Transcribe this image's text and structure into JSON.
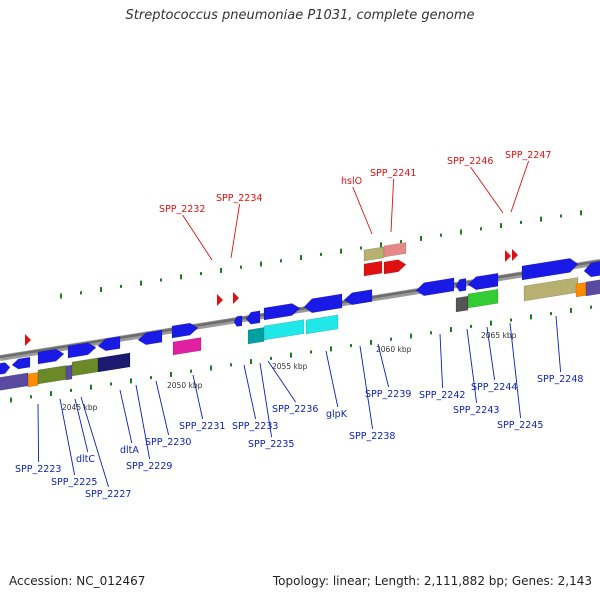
{
  "title": "Streptococcus pneumoniae P1031, complete genome",
  "accession": "Accession: NC_012467",
  "summary": "Topology: linear; Length: 2,111,882 bp; Genes: 2,143",
  "ticks": [
    {
      "label": "2045 kbp"
    },
    {
      "label": "2050 kbp"
    },
    {
      "label": "2055 kbp"
    },
    {
      "label": "2060 kbp"
    },
    {
      "label": "2065 kbp"
    }
  ],
  "labels_red": [
    {
      "id": "SPP_2232",
      "text": "SPP_2232"
    },
    {
      "id": "SPP_2234",
      "text": "SPP_2234"
    },
    {
      "id": "hslO",
      "text": "hslO"
    },
    {
      "id": "SPP_2241",
      "text": "SPP_2241"
    },
    {
      "id": "SPP_2246",
      "text": "SPP_2246"
    },
    {
      "id": "SPP_2247",
      "text": "SPP_2247"
    }
  ],
  "labels_blue": [
    {
      "id": "SPP_2223",
      "text": "SPP_2223"
    },
    {
      "id": "SPP_2225",
      "text": "SPP_2225"
    },
    {
      "id": "dltC",
      "text": "dltC"
    },
    {
      "id": "SPP_2227",
      "text": "SPP_2227"
    },
    {
      "id": "dltA",
      "text": "dltA"
    },
    {
      "id": "SPP_2229",
      "text": "SPP_2229"
    },
    {
      "id": "SPP_2230",
      "text": "SPP_2230"
    },
    {
      "id": "SPP_2231",
      "text": "SPP_2231"
    },
    {
      "id": "SPP_2233",
      "text": "SPP_2233"
    },
    {
      "id": "SPP_2235",
      "text": "SPP_2235"
    },
    {
      "id": "SPP_2236",
      "text": "SPP_2236"
    },
    {
      "id": "glpK",
      "text": "glpK"
    },
    {
      "id": "SPP_2238",
      "text": "SPP_2238"
    },
    {
      "id": "SPP_2239",
      "text": "SPP_2239"
    },
    {
      "id": "SPP_2242",
      "text": "SPP_2242"
    },
    {
      "id": "SPP_2243",
      "text": "SPP_2243"
    },
    {
      "id": "SPP_2244",
      "text": "SPP_2244"
    },
    {
      "id": "SPP_2245",
      "text": "SPP_2245"
    },
    {
      "id": "SPP_2248",
      "text": "SPP_2248"
    }
  ]
}
